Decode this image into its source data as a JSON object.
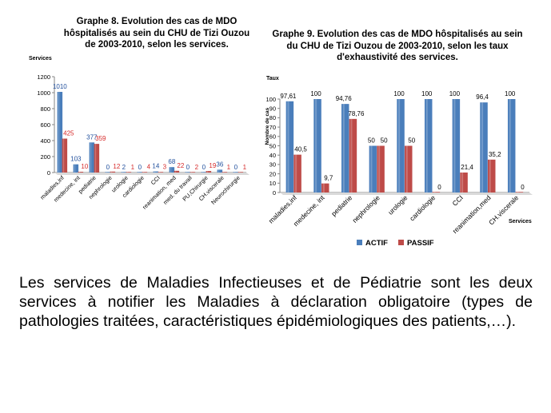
{
  "colors": {
    "actif": "#4a7ebb",
    "passif": "#be4b48",
    "axis": "#868686",
    "label_blue": "#1f4e9c",
    "label_red": "#d62a2a"
  },
  "chart_data": [
    {
      "type": "bar",
      "title": "Graphe 8. Evolution des cas de MDO hôspitalisés au sein du CHU de Tizi Ouzou de 2003-2010, selon les services.",
      "ylabel": "Services",
      "xlabel": "",
      "ylim": [
        0,
        1200
      ],
      "yticks": [
        "0",
        "200",
        "400",
        "600",
        "800",
        "1000",
        "1200"
      ],
      "grid": false,
      "legend": "none",
      "categories": [
        "maladies,inf",
        "medecine, int",
        "pediatrie",
        "nephrologie",
        "urologie",
        "cardiologie",
        "CCI",
        "reanimation, med",
        "med. du travail",
        "PU,Chirurgie",
        "CH.viscerale",
        "Neurochirurgie"
      ],
      "series": [
        {
          "values": [
            1010,
            103,
            377,
            0,
            2,
            0,
            14,
            68,
            0,
            0,
            36,
            0
          ],
          "labels": [
            "1010",
            "103",
            "377",
            "0",
            "2",
            "0",
            "14",
            "68",
            "0",
            "0",
            "36",
            "0"
          ]
        },
        {
          "values": [
            425,
            10,
            359,
            12,
            1,
            4,
            3,
            22,
            2,
            19,
            1,
            1
          ],
          "labels": [
            "425",
            "10",
            "359",
            "12",
            "1",
            "4",
            "3",
            "22",
            "2",
            "19",
            "1",
            "1"
          ]
        }
      ]
    },
    {
      "type": "bar",
      "title": "Graphe 9. Evolution des cas de MDO hôspitalisés au sein du CHU de Tizi Ouzou de 2003-2010, selon les taux d'exhaustivité des services.",
      "ylabel": "Nombre de cas",
      "ylabel_top": "Taux",
      "xlabel": "Services",
      "ylim": [
        0,
        100
      ],
      "yticks": [
        "0",
        "10",
        "20",
        "30",
        "40",
        "50",
        "60",
        "70",
        "80",
        "90",
        "100"
      ],
      "grid": false,
      "legend": "bottom",
      "categories": [
        "maladies,inf",
        "medecine, int",
        "pediatrie",
        "nephrologie",
        "urologie",
        "cardiologie",
        "CCI",
        "reanimation,med",
        "CH.viscerale"
      ],
      "series": [
        {
          "name": "ACTIF",
          "values": [
            97.61,
            100,
            94.76,
            50,
            100,
            100,
            100,
            96.4,
            100
          ],
          "labels": [
            "97,61",
            "100",
            "94,76",
            "50",
            "100",
            "100",
            "100",
            "96,4",
            "100"
          ]
        },
        {
          "name": "PASSIF",
          "values": [
            40.5,
            9.7,
            78.76,
            50,
            50,
            0,
            21.4,
            35.2,
            0
          ],
          "labels": [
            "40,5",
            "9,7",
            "78,76",
            "50",
            "50",
            "0",
            "21,4",
            "35,2",
            "0"
          ]
        }
      ]
    }
  ],
  "body_text": "Les services de Maladies Infectieuses et de Pédiatrie sont les deux services à notifier les Maladies à déclaration obligatoire (types de pathologies traitées, caractéristiques épidémiologiques des patients,…)."
}
